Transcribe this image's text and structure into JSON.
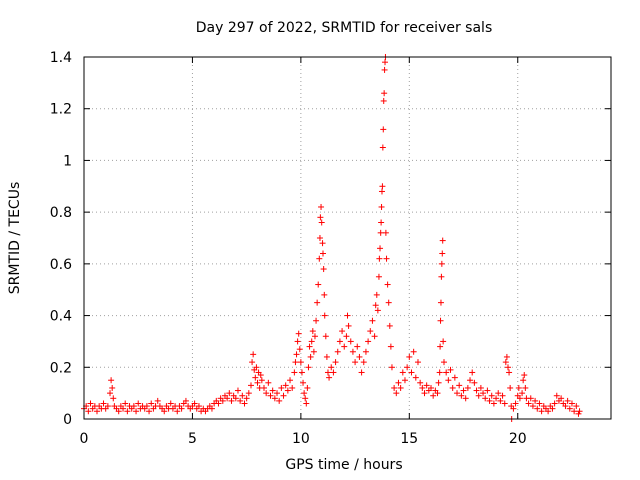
{
  "chart_data": {
    "type": "scatter",
    "title": "Day 297 of 2022, SRMTID for receiver sals",
    "xlabel": "GPS time / hours",
    "ylabel": "SRMTID / TECUs",
    "xlim": [
      0,
      24.3
    ],
    "ylim": [
      0,
      1.4
    ],
    "xticks": [
      0,
      5,
      10,
      15,
      20
    ],
    "xtick_labels": [
      "0",
      "5",
      "10",
      "15",
      "20"
    ],
    "yticks": [
      0,
      0.2,
      0.4,
      0.6,
      0.8,
      1.0,
      1.2,
      1.4
    ],
    "ytick_labels": [
      "0",
      "0.2",
      "0.4",
      "0.6",
      "0.8",
      "1",
      "1.2",
      "1.4"
    ],
    "grid": true,
    "marker": "+",
    "color": "#ff0000",
    "series": [
      {
        "name": "SRMTID",
        "points": [
          [
            0.0,
            0.04
          ],
          [
            0.1,
            0.05
          ],
          [
            0.2,
            0.03
          ],
          [
            0.3,
            0.06
          ],
          [
            0.4,
            0.04
          ],
          [
            0.5,
            0.05
          ],
          [
            0.6,
            0.03
          ],
          [
            0.7,
            0.05
          ],
          [
            0.8,
            0.04
          ],
          [
            0.9,
            0.06
          ],
          [
            1.0,
            0.04
          ],
          [
            1.1,
            0.05
          ],
          [
            1.2,
            0.1
          ],
          [
            1.25,
            0.15
          ],
          [
            1.3,
            0.12
          ],
          [
            1.35,
            0.08
          ],
          [
            1.4,
            0.05
          ],
          [
            1.5,
            0.04
          ],
          [
            1.6,
            0.03
          ],
          [
            1.7,
            0.05
          ],
          [
            1.8,
            0.04
          ],
          [
            1.9,
            0.06
          ],
          [
            2.0,
            0.03
          ],
          [
            2.1,
            0.05
          ],
          [
            2.2,
            0.04
          ],
          [
            2.3,
            0.05
          ],
          [
            2.4,
            0.03
          ],
          [
            2.5,
            0.06
          ],
          [
            2.6,
            0.04
          ],
          [
            2.7,
            0.05
          ],
          [
            2.8,
            0.04
          ],
          [
            2.9,
            0.05
          ],
          [
            3.0,
            0.03
          ],
          [
            3.1,
            0.06
          ],
          [
            3.2,
            0.04
          ],
          [
            3.3,
            0.05
          ],
          [
            3.4,
            0.07
          ],
          [
            3.5,
            0.05
          ],
          [
            3.6,
            0.04
          ],
          [
            3.7,
            0.03
          ],
          [
            3.8,
            0.05
          ],
          [
            3.9,
            0.04
          ],
          [
            4.0,
            0.06
          ],
          [
            4.1,
            0.04
          ],
          [
            4.2,
            0.05
          ],
          [
            4.3,
            0.03
          ],
          [
            4.4,
            0.05
          ],
          [
            4.5,
            0.04
          ],
          [
            4.6,
            0.06
          ],
          [
            4.7,
            0.07
          ],
          [
            4.8,
            0.05
          ],
          [
            4.9,
            0.04
          ],
          [
            5.0,
            0.05
          ],
          [
            5.1,
            0.06
          ],
          [
            5.2,
            0.04
          ],
          [
            5.3,
            0.05
          ],
          [
            5.4,
            0.03
          ],
          [
            5.5,
            0.04
          ],
          [
            5.6,
            0.03
          ],
          [
            5.7,
            0.04
          ],
          [
            5.8,
            0.05
          ],
          [
            5.9,
            0.04
          ],
          [
            6.0,
            0.06
          ],
          [
            6.1,
            0.07
          ],
          [
            6.2,
            0.06
          ],
          [
            6.3,
            0.08
          ],
          [
            6.4,
            0.07
          ],
          [
            6.5,
            0.09
          ],
          [
            6.6,
            0.08
          ],
          [
            6.7,
            0.1
          ],
          [
            6.8,
            0.07
          ],
          [
            6.9,
            0.09
          ],
          [
            7.0,
            0.08
          ],
          [
            7.1,
            0.11
          ],
          [
            7.2,
            0.07
          ],
          [
            7.3,
            0.09
          ],
          [
            7.4,
            0.06
          ],
          [
            7.5,
            0.08
          ],
          [
            7.6,
            0.1
          ],
          [
            7.7,
            0.13
          ],
          [
            7.75,
            0.22
          ],
          [
            7.8,
            0.25
          ],
          [
            7.85,
            0.19
          ],
          [
            7.9,
            0.16
          ],
          [
            7.95,
            0.2
          ],
          [
            8.0,
            0.14
          ],
          [
            8.05,
            0.18
          ],
          [
            8.1,
            0.12
          ],
          [
            8.15,
            0.17
          ],
          [
            8.2,
            0.15
          ],
          [
            8.3,
            0.12
          ],
          [
            8.4,
            0.1
          ],
          [
            8.5,
            0.14
          ],
          [
            8.6,
            0.09
          ],
          [
            8.7,
            0.11
          ],
          [
            8.8,
            0.08
          ],
          [
            8.9,
            0.1
          ],
          [
            9.0,
            0.07
          ],
          [
            9.1,
            0.12
          ],
          [
            9.2,
            0.09
          ],
          [
            9.3,
            0.13
          ],
          [
            9.4,
            0.11
          ],
          [
            9.5,
            0.15
          ],
          [
            9.6,
            0.12
          ],
          [
            9.7,
            0.18
          ],
          [
            9.75,
            0.22
          ],
          [
            9.8,
            0.25
          ],
          [
            9.85,
            0.3
          ],
          [
            9.9,
            0.33
          ],
          [
            9.95,
            0.27
          ],
          [
            10.0,
            0.22
          ],
          [
            10.05,
            0.18
          ],
          [
            10.1,
            0.14
          ],
          [
            10.15,
            0.1
          ],
          [
            10.2,
            0.08
          ],
          [
            10.25,
            0.06
          ],
          [
            10.3,
            0.12
          ],
          [
            10.35,
            0.2
          ],
          [
            10.4,
            0.28
          ],
          [
            10.45,
            0.24
          ],
          [
            10.5,
            0.3
          ],
          [
            10.55,
            0.34
          ],
          [
            10.6,
            0.26
          ],
          [
            10.65,
            0.32
          ],
          [
            10.7,
            0.38
          ],
          [
            10.75,
            0.45
          ],
          [
            10.8,
            0.52
          ],
          [
            10.85,
            0.62
          ],
          [
            10.88,
            0.7
          ],
          [
            10.9,
            0.78
          ],
          [
            10.93,
            0.82
          ],
          [
            10.96,
            0.76
          ],
          [
            11.0,
            0.68
          ],
          [
            11.02,
            0.64
          ],
          [
            11.05,
            0.58
          ],
          [
            11.08,
            0.48
          ],
          [
            11.1,
            0.4
          ],
          [
            11.15,
            0.32
          ],
          [
            11.2,
            0.24
          ],
          [
            11.25,
            0.18
          ],
          [
            11.3,
            0.16
          ],
          [
            11.4,
            0.2
          ],
          [
            11.5,
            0.18
          ],
          [
            11.6,
            0.22
          ],
          [
            11.7,
            0.26
          ],
          [
            11.8,
            0.3
          ],
          [
            11.9,
            0.34
          ],
          [
            12.0,
            0.28
          ],
          [
            12.1,
            0.32
          ],
          [
            12.15,
            0.4
          ],
          [
            12.2,
            0.36
          ],
          [
            12.3,
            0.3
          ],
          [
            12.4,
            0.26
          ],
          [
            12.5,
            0.22
          ],
          [
            12.6,
            0.28
          ],
          [
            12.7,
            0.24
          ],
          [
            12.8,
            0.18
          ],
          [
            12.9,
            0.22
          ],
          [
            13.0,
            0.26
          ],
          [
            13.1,
            0.3
          ],
          [
            13.2,
            0.34
          ],
          [
            13.3,
            0.38
          ],
          [
            13.4,
            0.32
          ],
          [
            13.45,
            0.44
          ],
          [
            13.5,
            0.48
          ],
          [
            13.55,
            0.42
          ],
          [
            13.6,
            0.55
          ],
          [
            13.62,
            0.62
          ],
          [
            13.65,
            0.66
          ],
          [
            13.68,
            0.72
          ],
          [
            13.7,
            0.76
          ],
          [
            13.72,
            0.82
          ],
          [
            13.74,
            0.88
          ],
          [
            13.76,
            0.9
          ],
          [
            13.78,
            1.05
          ],
          [
            13.8,
            1.12
          ],
          [
            13.82,
            1.23
          ],
          [
            13.84,
            1.26
          ],
          [
            13.86,
            1.35
          ],
          [
            13.88,
            1.38
          ],
          [
            13.9,
            1.4
          ],
          [
            13.92,
            0.72
          ],
          [
            13.95,
            0.62
          ],
          [
            14.0,
            0.52
          ],
          [
            14.05,
            0.45
          ],
          [
            14.1,
            0.36
          ],
          [
            14.15,
            0.28
          ],
          [
            14.2,
            0.2
          ],
          [
            14.3,
            0.12
          ],
          [
            14.4,
            0.1
          ],
          [
            14.5,
            0.14
          ],
          [
            14.6,
            0.12
          ],
          [
            14.7,
            0.18
          ],
          [
            14.8,
            0.15
          ],
          [
            14.9,
            0.2
          ],
          [
            15.0,
            0.24
          ],
          [
            15.1,
            0.18
          ],
          [
            15.2,
            0.26
          ],
          [
            15.3,
            0.16
          ],
          [
            15.4,
            0.22
          ],
          [
            15.5,
            0.14
          ],
          [
            15.6,
            0.12
          ],
          [
            15.7,
            0.1
          ],
          [
            15.8,
            0.13
          ],
          [
            15.9,
            0.11
          ],
          [
            16.0,
            0.12
          ],
          [
            16.1,
            0.09
          ],
          [
            16.2,
            0.11
          ],
          [
            16.3,
            0.1
          ],
          [
            16.35,
            0.14
          ],
          [
            16.4,
            0.18
          ],
          [
            16.42,
            0.28
          ],
          [
            16.44,
            0.38
          ],
          [
            16.46,
            0.45
          ],
          [
            16.48,
            0.55
          ],
          [
            16.5,
            0.6
          ],
          [
            16.52,
            0.64
          ],
          [
            16.54,
            0.69
          ],
          [
            16.56,
            0.3
          ],
          [
            16.6,
            0.22
          ],
          [
            16.7,
            0.18
          ],
          [
            16.8,
            0.15
          ],
          [
            16.9,
            0.19
          ],
          [
            17.0,
            0.12
          ],
          [
            17.1,
            0.16
          ],
          [
            17.2,
            0.1
          ],
          [
            17.3,
            0.13
          ],
          [
            17.4,
            0.09
          ],
          [
            17.5,
            0.11
          ],
          [
            17.6,
            0.08
          ],
          [
            17.7,
            0.12
          ],
          [
            17.8,
            0.15
          ],
          [
            17.9,
            0.18
          ],
          [
            18.0,
            0.14
          ],
          [
            18.1,
            0.11
          ],
          [
            18.2,
            0.09
          ],
          [
            18.3,
            0.12
          ],
          [
            18.4,
            0.1
          ],
          [
            18.5,
            0.08
          ],
          [
            18.6,
            0.11
          ],
          [
            18.7,
            0.07
          ],
          [
            18.8,
            0.09
          ],
          [
            18.9,
            0.06
          ],
          [
            19.0,
            0.08
          ],
          [
            19.1,
            0.1
          ],
          [
            19.2,
            0.07
          ],
          [
            19.3,
            0.09
          ],
          [
            19.4,
            0.06
          ],
          [
            19.45,
            0.22
          ],
          [
            19.5,
            0.24
          ],
          [
            19.55,
            0.2
          ],
          [
            19.6,
            0.18
          ],
          [
            19.65,
            0.12
          ],
          [
            19.7,
            0.05
          ],
          [
            19.72,
            0.0
          ],
          [
            19.8,
            0.04
          ],
          [
            19.9,
            0.06
          ],
          [
            20.0,
            0.09
          ],
          [
            20.05,
            0.12
          ],
          [
            20.1,
            0.08
          ],
          [
            20.2,
            0.1
          ],
          [
            20.25,
            0.15
          ],
          [
            20.3,
            0.17
          ],
          [
            20.35,
            0.12
          ],
          [
            20.4,
            0.08
          ],
          [
            20.5,
            0.06
          ],
          [
            20.6,
            0.08
          ],
          [
            20.7,
            0.05
          ],
          [
            20.8,
            0.07
          ],
          [
            20.9,
            0.04
          ],
          [
            21.0,
            0.06
          ],
          [
            21.1,
            0.03
          ],
          [
            21.2,
            0.05
          ],
          [
            21.3,
            0.04
          ],
          [
            21.4,
            0.03
          ],
          [
            21.5,
            0.05
          ],
          [
            21.6,
            0.04
          ],
          [
            21.7,
            0.06
          ],
          [
            21.8,
            0.09
          ],
          [
            21.9,
            0.07
          ],
          [
            22.0,
            0.08
          ],
          [
            22.1,
            0.06
          ],
          [
            22.2,
            0.05
          ],
          [
            22.3,
            0.07
          ],
          [
            22.4,
            0.04
          ],
          [
            22.5,
            0.06
          ],
          [
            22.6,
            0.03
          ],
          [
            22.7,
            0.05
          ],
          [
            22.8,
            0.02
          ],
          [
            22.85,
            0.03
          ]
        ]
      }
    ]
  }
}
